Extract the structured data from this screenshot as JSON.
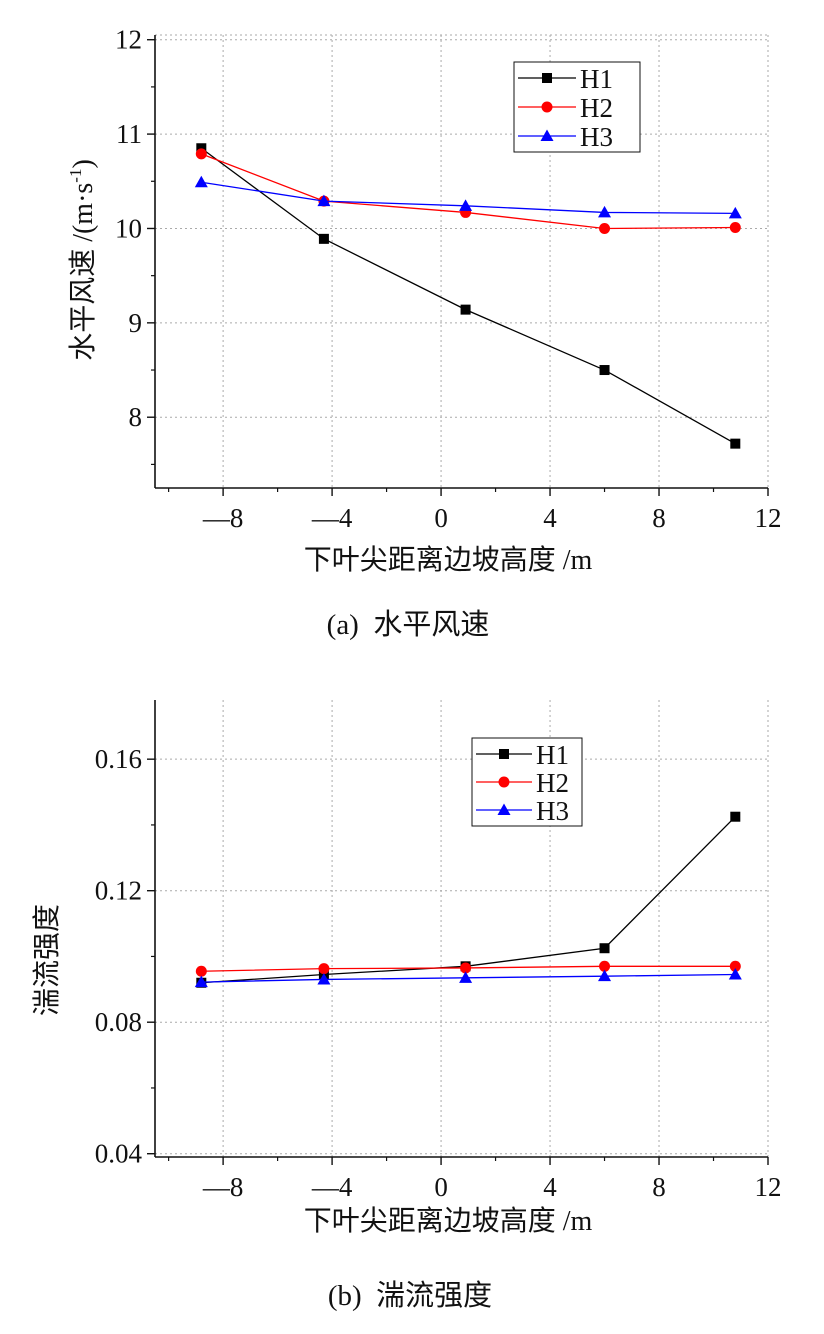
{
  "chart_data": [
    {
      "type": "line",
      "caption": "(a)  水平风速",
      "xlabel": "下叶尖距离边坡高度 /m",
      "ylabel": "水平风速 /(m·s",
      "ylabel_sup": "-1",
      "ylabel_close": ")",
      "xlim": [
        -10.5,
        12
      ],
      "ylim": [
        7.25,
        12.05
      ],
      "xticks": [
        -8,
        -4,
        0,
        4,
        8,
        12
      ],
      "xtick_labels": [
        "—8",
        "—4",
        "0",
        "4",
        "8",
        "12"
      ],
      "yticks": [
        8,
        9,
        10,
        11,
        12
      ],
      "ytick_labels": [
        "8",
        "9",
        "10",
        "11",
        "12"
      ],
      "grid": true,
      "legend_position": "top-right",
      "x": [
        -8.8,
        -4.3,
        0.9,
        6.0,
        10.8
      ],
      "series": [
        {
          "name": "H1",
          "values": [
            10.85,
            9.89,
            9.14,
            8.5,
            7.72
          ],
          "color": "#000000",
          "marker": "square"
        },
        {
          "name": "H2",
          "values": [
            10.79,
            10.29,
            10.17,
            10.0,
            10.01
          ],
          "color": "#ff0000",
          "marker": "circle"
        },
        {
          "name": "H3",
          "values": [
            10.49,
            10.29,
            10.24,
            10.17,
            10.16
          ],
          "color": "#0000ff",
          "marker": "triangle"
        }
      ]
    },
    {
      "type": "line",
      "caption": "(b)  湍流强度",
      "xlabel": "下叶尖距离边坡高度 /m",
      "ylabel": "湍流强度",
      "xlim": [
        -10.5,
        12
      ],
      "ylim": [
        0.039,
        0.178
      ],
      "xticks": [
        -8,
        -4,
        0,
        4,
        8,
        12
      ],
      "xtick_labels": [
        "—8",
        "—4",
        "0",
        "4",
        "8",
        "12"
      ],
      "yticks": [
        0.04,
        0.08,
        0.12,
        0.16
      ],
      "ytick_labels": [
        "0.04",
        "0.08",
        "0.12",
        "0.16"
      ],
      "grid": true,
      "legend_position": "top-right",
      "x": [
        -8.8,
        -4.3,
        0.9,
        6.0,
        10.8
      ],
      "series": [
        {
          "name": "H1",
          "values": [
            0.092,
            0.0945,
            0.097,
            0.1025,
            0.1425
          ],
          "color": "#000000",
          "marker": "square"
        },
        {
          "name": "H2",
          "values": [
            0.0955,
            0.0963,
            0.0965,
            0.097,
            0.097
          ],
          "color": "#ff0000",
          "marker": "circle"
        },
        {
          "name": "H3",
          "values": [
            0.0922,
            0.093,
            0.0935,
            0.094,
            0.0945
          ],
          "color": "#0000ff",
          "marker": "triangle"
        }
      ]
    }
  ]
}
